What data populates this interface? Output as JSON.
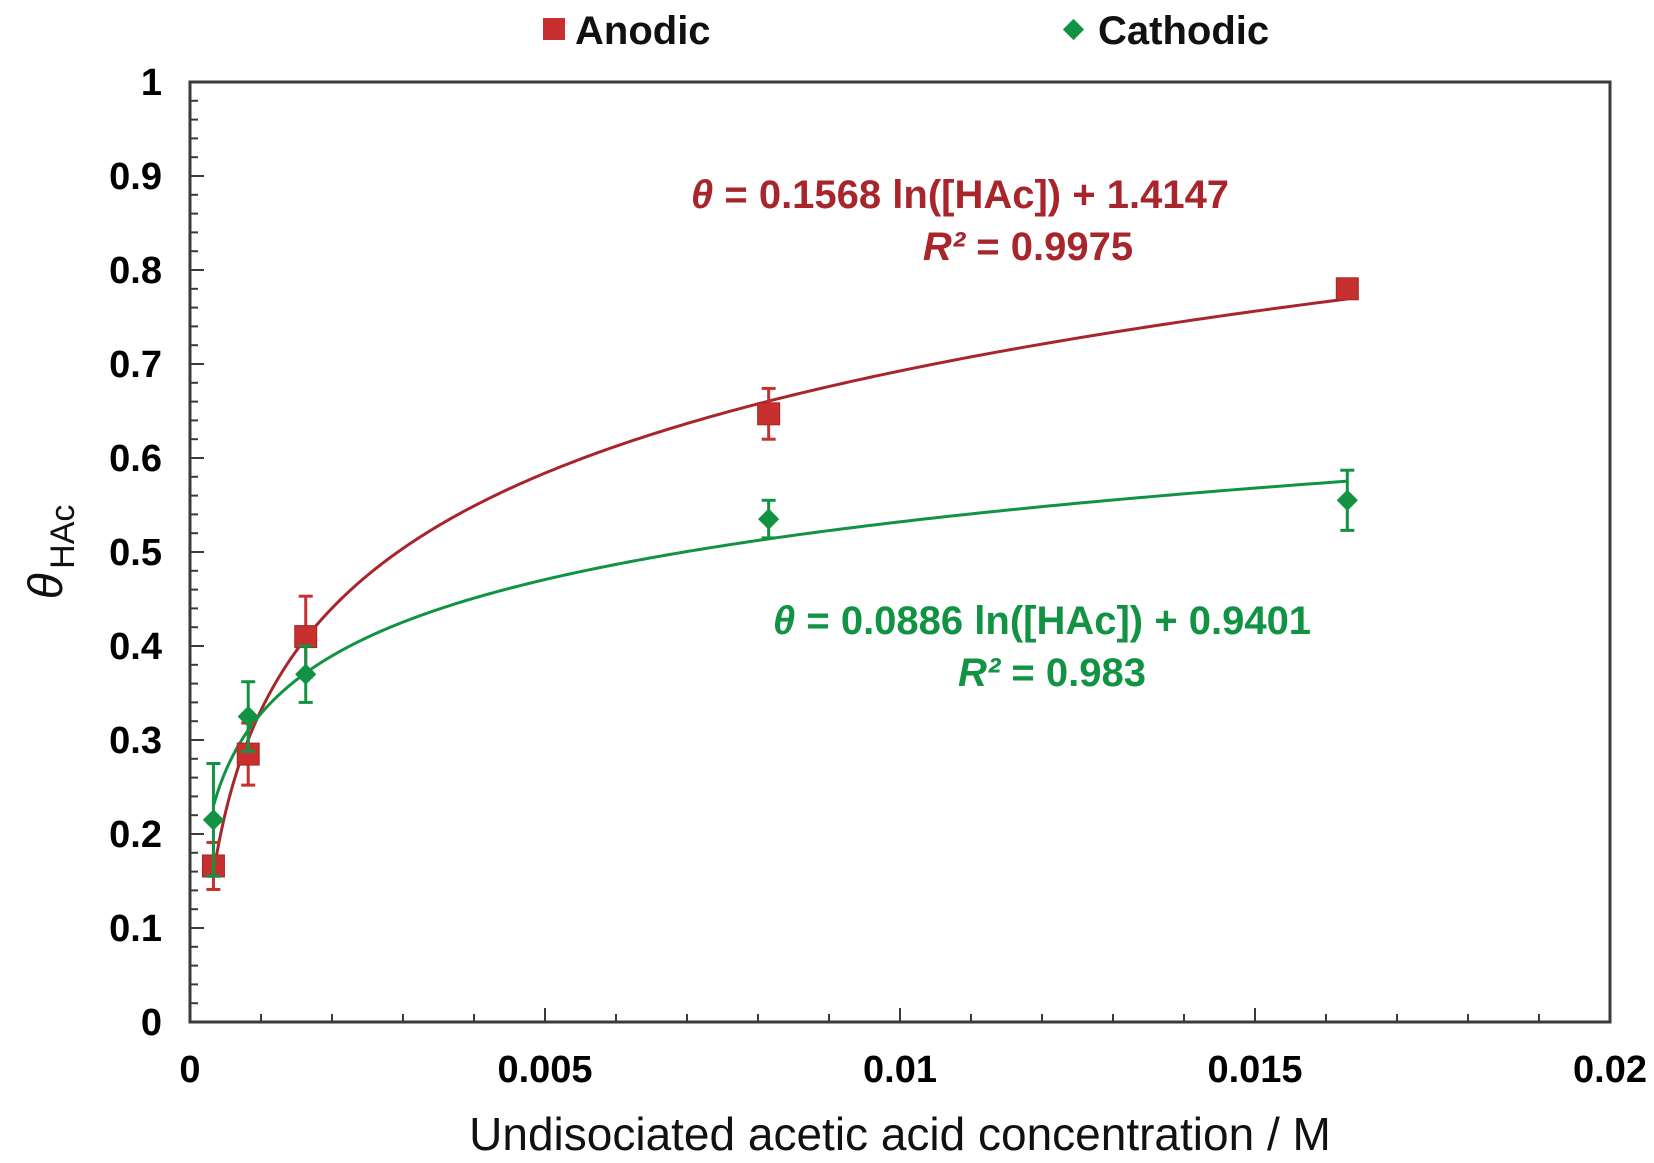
{
  "chart_data": {
    "type": "scatter",
    "title": "",
    "xlabel": "Undisociated acetic acid concentration / M",
    "ylabel_symbol": "θ",
    "ylabel_subscript": "HAc",
    "xlim": [
      0,
      0.02
    ],
    "ylim": [
      0,
      1
    ],
    "x_ticks": [
      "0",
      "0.005",
      "0.01",
      "0.015",
      "0.02"
    ],
    "y_ticks": [
      "0",
      "0.1",
      "0.2",
      "0.3",
      "0.4",
      "0.5",
      "0.6",
      "0.7",
      "0.8",
      "0.9",
      "1"
    ],
    "grid": false,
    "legend_position": "top",
    "series": [
      {
        "name": "Anodic",
        "marker": "square",
        "color": "#c8302f",
        "line_color": "#a8262b",
        "x": [
          0.00033,
          0.00082,
          0.00163,
          0.00815,
          0.0163
        ],
        "y": [
          0.166,
          0.285,
          0.41,
          0.647,
          0.78
        ],
        "error": [
          0.025,
          0.033,
          0.043,
          0.027,
          0.008
        ],
        "fit": {
          "a": 0.1568,
          "b": 1.4147,
          "r2": "0.9975"
        },
        "equation_parts": [
          "θ",
          " = 0.1568 ln([HAc]) + 1.4147"
        ],
        "r2_parts": [
          "R²",
          " = 0.9975"
        ]
      },
      {
        "name": "Cathodic",
        "marker": "diamond",
        "color": "#119343",
        "line_color": "#119343",
        "x": [
          0.00033,
          0.00082,
          0.00163,
          0.00815,
          0.0163
        ],
        "y": [
          0.215,
          0.325,
          0.37,
          0.535,
          0.555
        ],
        "error": [
          0.06,
          0.037,
          0.03,
          0.02,
          0.032
        ],
        "fit": {
          "a": 0.0886,
          "b": 0.9401,
          "r2": "0.983"
        },
        "equation_parts": [
          "θ",
          " = 0.0886 ln([HAc]) + 0.9401"
        ],
        "r2_parts": [
          "R²",
          " = 0.983"
        ]
      }
    ]
  }
}
